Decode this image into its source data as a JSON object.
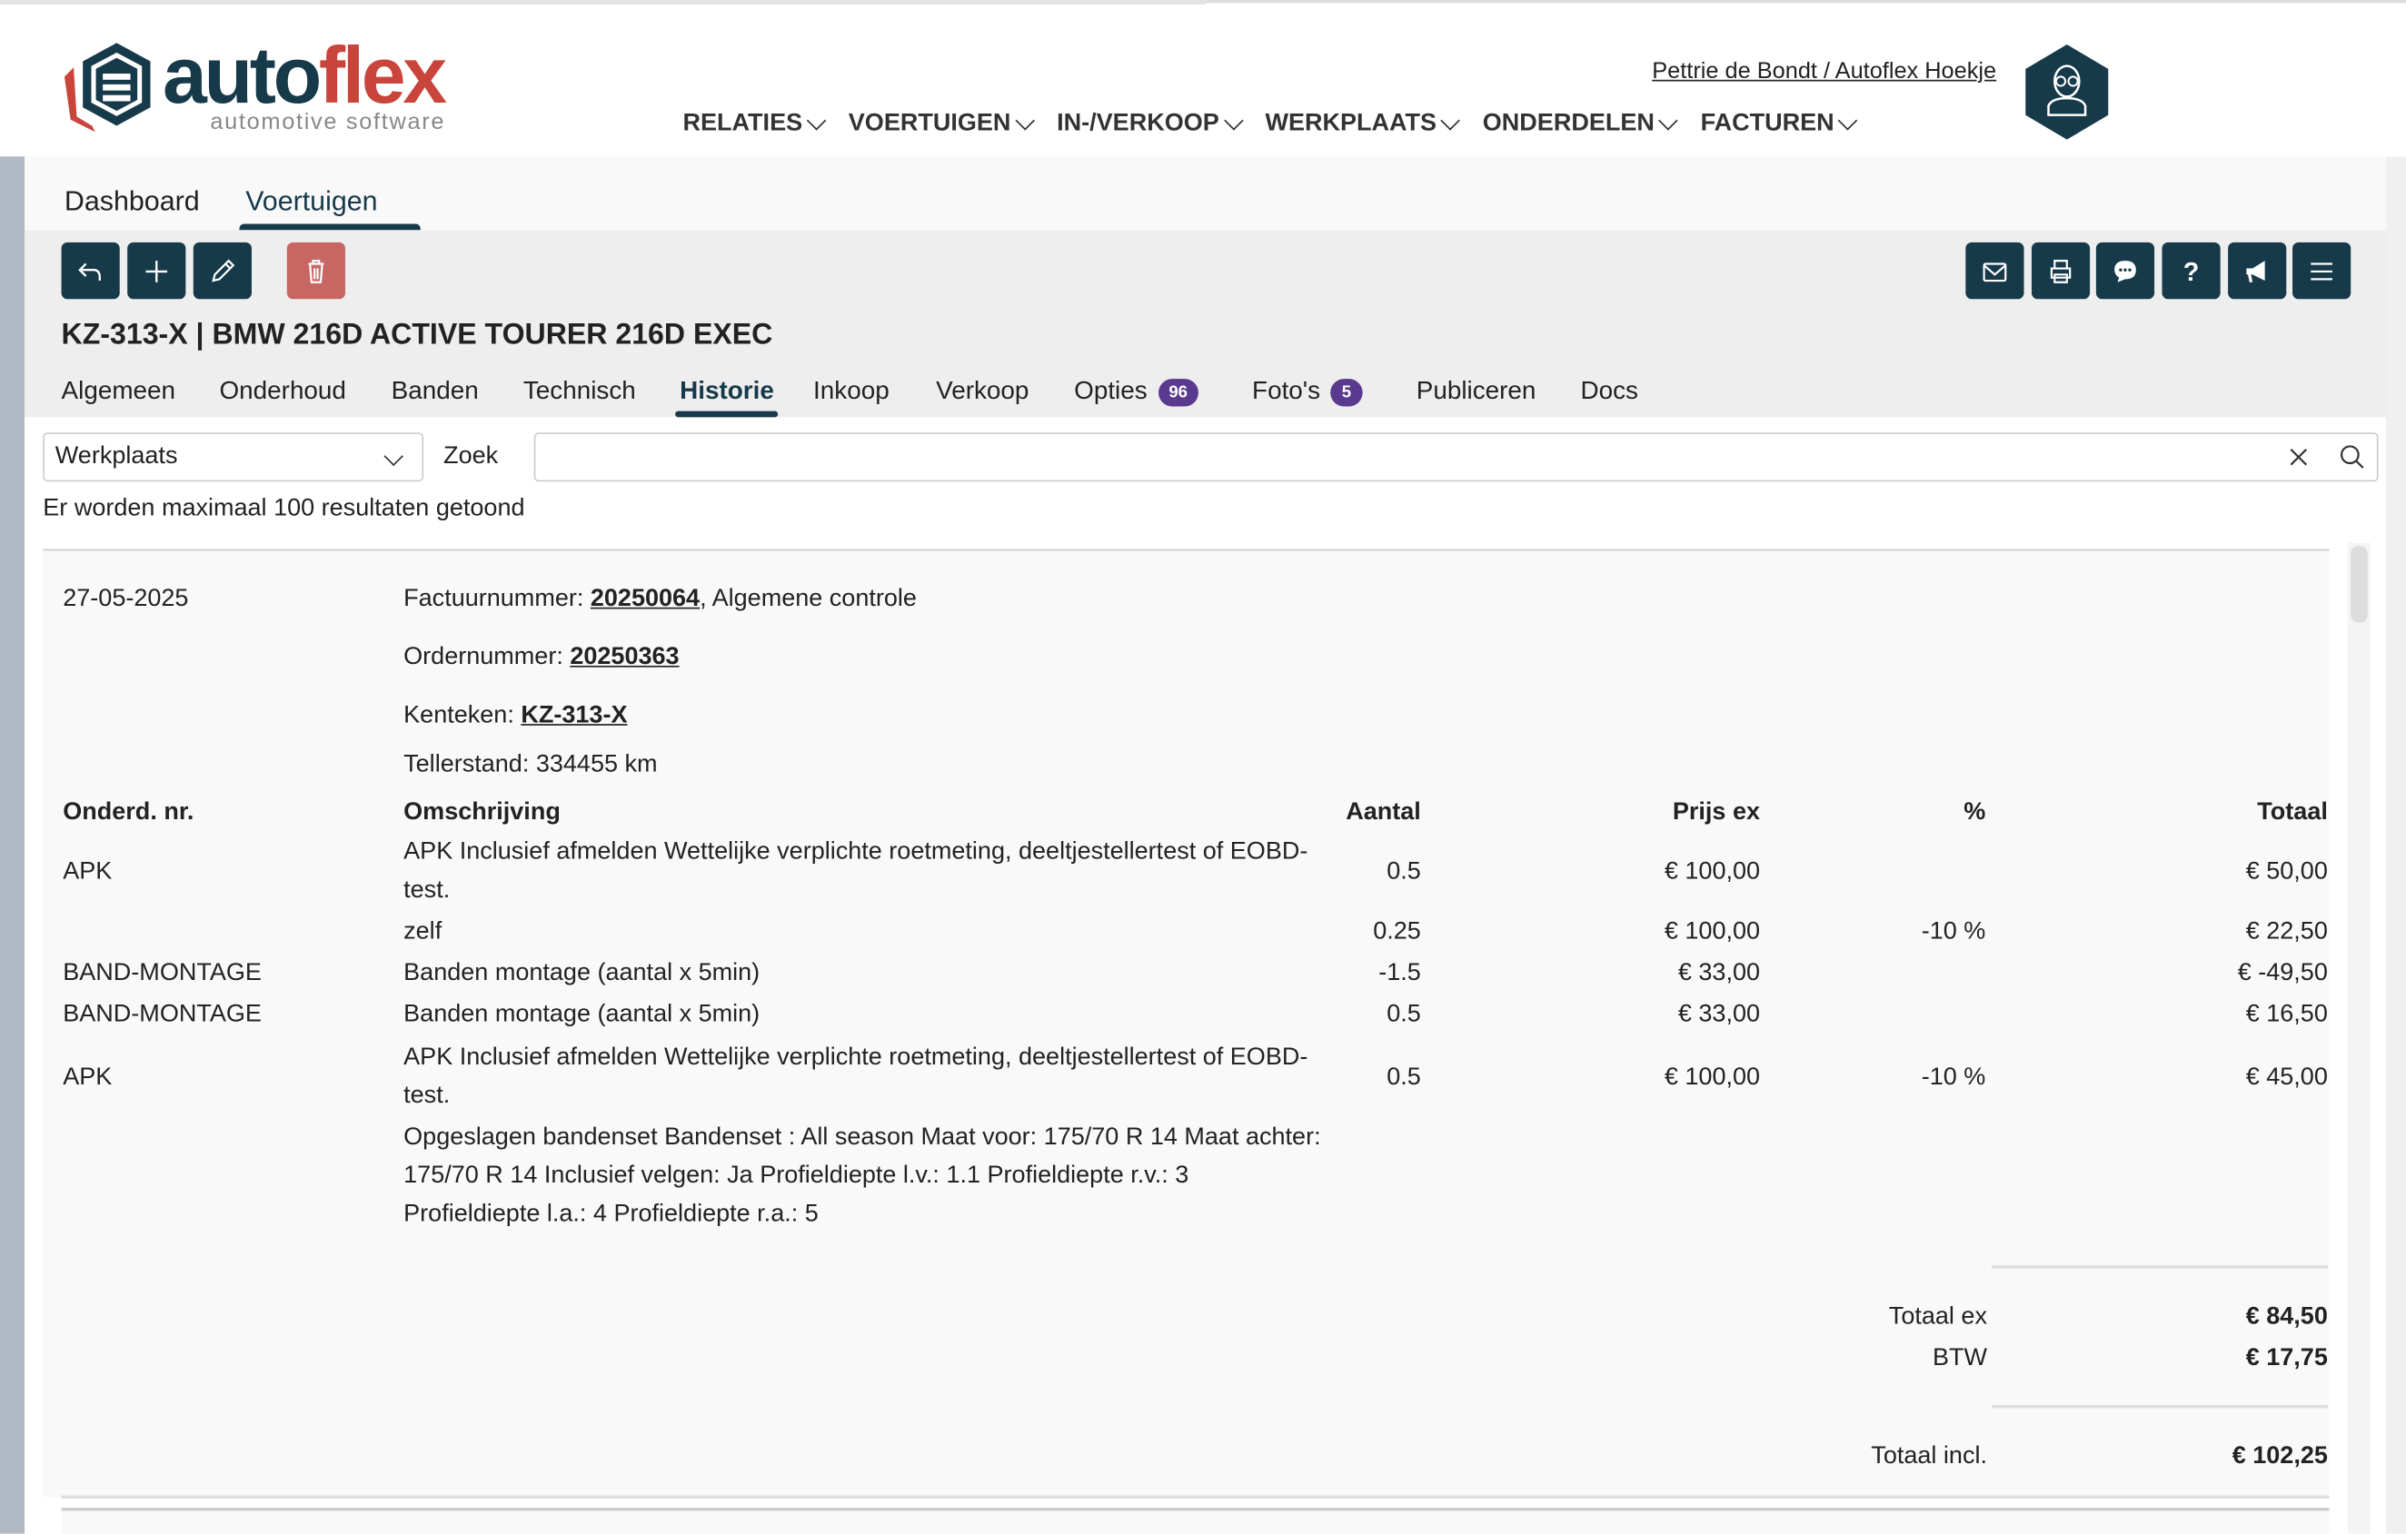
{
  "brand": {
    "name_part1": "auto",
    "name_part2": "flex",
    "tagline": "automotive software",
    "colors": {
      "primary": "#173a4a",
      "accent": "#c9443b",
      "danger": "#c86664",
      "badge": "#5a3a8f"
    }
  },
  "header": {
    "user": "Pettrie de Bondt / Autoflex Hoekje",
    "avatar_icon": "user-glasses-icon",
    "nav": [
      {
        "label": "RELATIES"
      },
      {
        "label": "VOERTUIGEN"
      },
      {
        "label": "IN-/VERKOOP"
      },
      {
        "label": "WERKPLAATS"
      },
      {
        "label": "ONDERDELEN"
      },
      {
        "label": "FACTUREN"
      }
    ]
  },
  "top_tabs": [
    {
      "label": "Dashboard"
    },
    {
      "label": "Voertuigen",
      "active": true
    }
  ],
  "toolbar": {
    "left": [
      "back-icon",
      "plus-icon",
      "pencil-icon",
      "trash-icon"
    ],
    "right": [
      "mail-icon",
      "print-icon",
      "chat-icon",
      "help-icon",
      "megaphone-icon",
      "menu-icon"
    ]
  },
  "vehicle_title": "KZ-313-X | BMW 216D ACTIVE TOURER 216D EXEC",
  "sub_tabs": [
    {
      "label": "Algemeen"
    },
    {
      "label": "Onderhoud"
    },
    {
      "label": "Banden"
    },
    {
      "label": "Technisch"
    },
    {
      "label": "Historie",
      "active": true
    },
    {
      "label": "Inkoop"
    },
    {
      "label": "Verkoop"
    },
    {
      "label": "Opties",
      "badge": "96"
    },
    {
      "label": "Foto's",
      "badge": "5"
    },
    {
      "label": "Publiceren"
    },
    {
      "label": "Docs"
    }
  ],
  "filter": {
    "select_value": "Werkplaats",
    "search_label": "Zoek",
    "search_value": "",
    "note": "Er worden maximaal 100 resultaten getoond"
  },
  "record": {
    "date": "27-05-2025",
    "invoice_label": "Factuurnummer: ",
    "invoice_no": "20250064",
    "invoice_desc": ", Algemene controle",
    "order_label": "Ordernummer: ",
    "order_no": "20250363",
    "plate_label": "Kenteken: ",
    "plate": "KZ-313-X",
    "odometer": "Tellerstand: 334455 km",
    "columns": [
      "Onderd. nr.",
      "Omschrijving",
      "Aantal",
      "Prijs ex",
      "%",
      "Totaal"
    ],
    "rows": [
      {
        "part": "APK",
        "desc": "APK Inclusief afmelden Wettelijke verplichte roetmeting, deeltjestellertest of EOBD-test.",
        "qty": "0.5",
        "price": "€ 100,00",
        "pct": "",
        "total": "€ 50,00"
      },
      {
        "part": "",
        "desc": "zelf",
        "qty": "0.25",
        "price": "€ 100,00",
        "pct": "-10 %",
        "total": "€ 22,50"
      },
      {
        "part": "BAND-MONTAGE",
        "desc": "Banden montage (aantal x 5min)",
        "qty": "-1.5",
        "price": "€ 33,00",
        "pct": "",
        "total": "€ -49,50"
      },
      {
        "part": "BAND-MONTAGE",
        "desc": "Banden montage (aantal x 5min)",
        "qty": "0.5",
        "price": "€ 33,00",
        "pct": "",
        "total": "€ 16,50"
      },
      {
        "part": "APK",
        "desc": "APK Inclusief afmelden Wettelijke verplichte roetmeting, deeltjestellertest of EOBD-test.",
        "qty": "0.5",
        "price": "€ 100,00",
        "pct": "-10 %",
        "total": "€ 45,00"
      },
      {
        "part": "",
        "desc": "Opgeslagen bandenset Bandenset : All season Maat voor: 175/70 R 14 Maat achter: 175/70 R 14 Inclusief velgen: Ja Profieldiepte l.v.: 1.1 Profieldiepte r.v.: 3 Profieldiepte l.a.: 4 Profieldiepte r.a.: 5",
        "qty": "",
        "price": "",
        "pct": "",
        "total": ""
      }
    ],
    "totals": {
      "ex_label": "Totaal ex",
      "ex": "€ 84,50",
      "btw_label": "BTW",
      "btw": "€ 17,75",
      "incl_label": "Totaal incl.",
      "incl": "€ 102,25"
    }
  }
}
